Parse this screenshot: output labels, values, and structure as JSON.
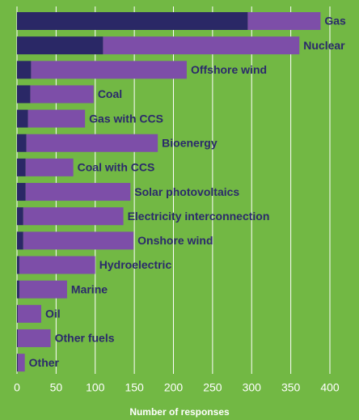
{
  "chart_data": {
    "type": "stacked_barh",
    "categories": [
      "Gas",
      "Nuclear",
      "Offshore wind",
      "Coal",
      "Gas with CCS",
      "Bioenergy",
      "Coal with CCS",
      "Solar photovoltaics",
      "Electricity interconnection",
      "Onshore wind",
      "Hydroelectric",
      "Marine",
      "Oil",
      "Other fuels",
      "Other"
    ],
    "series": [
      {
        "color": "#2a2866",
        "values": [
          295,
          110,
          18,
          17,
          14,
          12,
          11,
          11,
          8,
          8,
          3,
          3,
          1,
          1,
          1
        ]
      },
      {
        "color": "#7d4ea8",
        "values": [
          93,
          251,
          199,
          81,
          73,
          168,
          61,
          134,
          128,
          141,
          97,
          61,
          30,
          42,
          9
        ]
      }
    ],
    "xlabel": "Number of responses",
    "xlim": [
      0,
      400
    ],
    "xticks": [
      0,
      50,
      100,
      150,
      200,
      250,
      300,
      350,
      400
    ],
    "grid": true
  }
}
